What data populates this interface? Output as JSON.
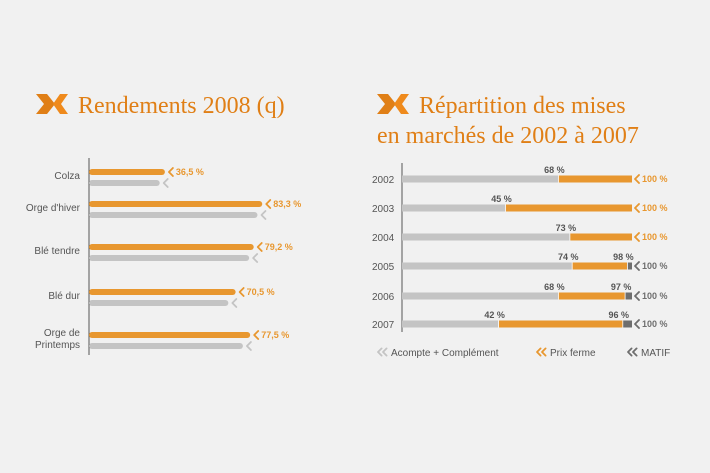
{
  "colors": {
    "orange": "#e8972f",
    "gray": "#c4c4c4",
    "dark": "#6e6e6e",
    "title": "#e07f16"
  },
  "chart_data": [
    {
      "type": "bar",
      "orientation": "horizontal",
      "title": "Rendements 2008 (q)",
      "categories": [
        "Colza",
        "Orge d'hiver",
        "Blé tendre",
        "Blé dur",
        "Orge de Printemps"
      ],
      "category_lines": [
        [
          "Colza"
        ],
        [
          "Orge d'hiver"
        ],
        [
          "Blé tendre"
        ],
        [
          "Blé dur"
        ],
        [
          "Orge de",
          "Printemps"
        ]
      ],
      "series": [
        {
          "values": [
            36.5,
            83.3,
            79.2,
            70.5,
            77.5
          ],
          "labels": [
            "36,5 %",
            "83,3 %",
            "79,2 %",
            "70,5 %",
            "77,5 %"
          ]
        },
        {
          "values": [
            34,
            81,
            77,
            67,
            74
          ]
        }
      ],
      "xlim": [
        0,
        100
      ]
    },
    {
      "type": "bar",
      "orientation": "horizontal",
      "stacked": true,
      "title_lines": [
        "Répartition des mises",
        "en marchés de 2002 à 2007"
      ],
      "categories": [
        "2002",
        "2003",
        "2004",
        "2005",
        "2006",
        "2007"
      ],
      "series": [
        {
          "name": "Acompte + Complément",
          "values": [
            68,
            45,
            73,
            74,
            68,
            42
          ]
        },
        {
          "name": "Prix ferme",
          "values": [
            32,
            55,
            27,
            24,
            29,
            54
          ]
        },
        {
          "name": "MATIF",
          "values": [
            0,
            0,
            0,
            2,
            3,
            4
          ]
        }
      ],
      "cumulative_labels": [
        [
          "68 %",
          "100 %"
        ],
        [
          "45 %",
          "100 %"
        ],
        [
          "73 %",
          "100 %"
        ],
        [
          "74 %",
          "98 %",
          "100 %"
        ],
        [
          "68 %",
          "97 %",
          "100 %"
        ],
        [
          "42 %",
          "96 %",
          "100 %"
        ]
      ],
      "xlim": [
        0,
        100
      ],
      "legend_position": "bottom"
    }
  ]
}
